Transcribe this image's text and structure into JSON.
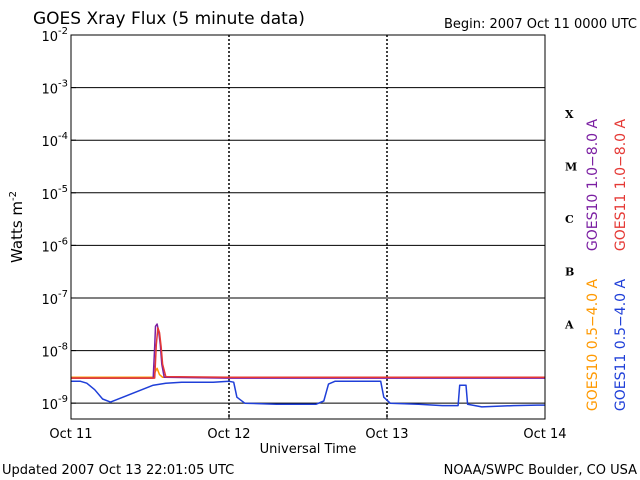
{
  "header": {
    "title": "GOES Xray Flux (5 minute data)",
    "begin": "Begin:  2007 Oct 11 0000 UTC"
  },
  "footer": {
    "updated": "Updated 2007 Oct 13 22:01:05 UTC",
    "credit": "NOAA/SWPC Boulder, CO USA"
  },
  "chart_data": {
    "type": "line",
    "title": "GOES Xray Flux (5 minute data)",
    "xlabel": "Universal Time",
    "ylabel": "Watts m-2",
    "ylabel_parts": {
      "base": "Watts m",
      "sup": "-2"
    },
    "y_scale": "log",
    "ylim": [
      5e-10,
      0.01
    ],
    "y_ticks": [
      {
        "value": 0.01,
        "base": "10",
        "exp": "-2"
      },
      {
        "value": 0.001,
        "base": "10",
        "exp": "-3"
      },
      {
        "value": 0.0001,
        "base": "10",
        "exp": "-4"
      },
      {
        "value": 1e-05,
        "base": "10",
        "exp": "-5"
      },
      {
        "value": 1e-06,
        "base": "10",
        "exp": "-6"
      },
      {
        "value": 1e-07,
        "base": "10",
        "exp": "-7"
      },
      {
        "value": 1e-08,
        "base": "10",
        "exp": "-8"
      },
      {
        "value": 1e-09,
        "base": "10",
        "exp": "-9"
      }
    ],
    "x_unit": "days since Oct 11 00:00 UTC",
    "xlim": [
      0,
      3
    ],
    "x_ticks": [
      {
        "value": 0,
        "label": "Oct 11"
      },
      {
        "value": 1,
        "label": "Oct 12"
      },
      {
        "value": 2,
        "label": "Oct 13"
      },
      {
        "value": 3,
        "label": "Oct 14"
      }
    ],
    "flare_classes": [
      {
        "label": "X",
        "low": 0.0001,
        "high": 0.001
      },
      {
        "label": "M",
        "low": 1e-05,
        "high": 0.0001
      },
      {
        "label": "C",
        "low": 1e-06,
        "high": 1e-05
      },
      {
        "label": "B",
        "low": 1e-07,
        "high": 1e-06
      },
      {
        "label": "A",
        "low": 1e-08,
        "high": 1e-07
      }
    ],
    "grid": true,
    "series": [
      {
        "name": "GOES10 1.0-8.0 A",
        "color": "#7b1fa2",
        "points": [
          [
            0,
            3e-09
          ],
          [
            0.5,
            3e-09
          ],
          [
            0.52,
            3e-09
          ],
          [
            0.53,
            1.2e-08
          ],
          [
            0.535,
            2.9e-08
          ],
          [
            0.545,
            3.2e-08
          ],
          [
            0.555,
            2.3e-08
          ],
          [
            0.565,
            1.3e-08
          ],
          [
            0.575,
            5.5e-09
          ],
          [
            0.59,
            3.1e-09
          ],
          [
            1.0,
            3e-09
          ],
          [
            2.0,
            3e-09
          ],
          [
            3.0,
            3e-09
          ]
        ]
      },
      {
        "name": "GOES11 1.0-8.0 A",
        "color": "#e53935",
        "points": [
          [
            0,
            3e-09
          ],
          [
            0.51,
            3e-09
          ],
          [
            0.53,
            3e-09
          ],
          [
            0.54,
            1.3e-08
          ],
          [
            0.55,
            2.7e-08
          ],
          [
            0.56,
            2.2e-08
          ],
          [
            0.57,
            1.2e-08
          ],
          [
            0.58,
            5.5e-09
          ],
          [
            0.6,
            3.2e-09
          ],
          [
            1.0,
            3.1e-09
          ],
          [
            2.0,
            3.1e-09
          ],
          [
            3.0,
            3.1e-09
          ]
        ]
      },
      {
        "name": "GOES10 0.5-4.0 A",
        "color": "#ff9900",
        "points": [
          [
            0,
            3.1e-09
          ],
          [
            0.52,
            3.1e-09
          ],
          [
            0.53,
            3.8e-09
          ],
          [
            0.545,
            4.6e-09
          ],
          [
            0.56,
            3.5e-09
          ],
          [
            0.58,
            3.1e-09
          ],
          [
            1.0,
            3.1e-09
          ],
          [
            2.0,
            3.1e-09
          ],
          [
            3.0,
            3.1e-09
          ]
        ]
      },
      {
        "name": "GOES11 0.5-4.0 A",
        "color": "#1f3fd8",
        "points": [
          [
            0,
            2.6e-09
          ],
          [
            0.06,
            2.6e-09
          ],
          [
            0.1,
            2.4e-09
          ],
          [
            0.15,
            1.8e-09
          ],
          [
            0.2,
            1.2e-09
          ],
          [
            0.25,
            1.05e-09
          ],
          [
            0.52,
            2.2e-09
          ],
          [
            0.6,
            2.4e-09
          ],
          [
            0.7,
            2.5e-09
          ],
          [
            0.8,
            2.5e-09
          ],
          [
            0.9,
            2.5e-09
          ],
          [
            1.0,
            2.6e-09
          ],
          [
            1.03,
            2.5e-09
          ],
          [
            1.05,
            1.3e-09
          ],
          [
            1.1,
            1e-09
          ],
          [
            1.3,
            9.5e-10
          ],
          [
            1.55,
            9.5e-10
          ],
          [
            1.6,
            1.1e-09
          ],
          [
            1.63,
            2.3e-09
          ],
          [
            1.67,
            2.6e-09
          ],
          [
            1.75,
            2.6e-09
          ],
          [
            1.9,
            2.6e-09
          ],
          [
            1.96,
            2.6e-09
          ],
          [
            1.98,
            1.3e-09
          ],
          [
            2.02,
            1e-09
          ],
          [
            2.2,
            9.5e-10
          ],
          [
            2.35,
            9e-10
          ],
          [
            2.45,
            9e-10
          ],
          [
            2.46,
            2.2e-09
          ],
          [
            2.5,
            2.2e-09
          ],
          [
            2.51,
            9.5e-10
          ],
          [
            2.6,
            8.5e-10
          ],
          [
            2.8,
            9e-10
          ],
          [
            2.95,
            9.2e-10
          ],
          [
            3.0,
            9.2e-10
          ]
        ]
      }
    ],
    "legend_order": [
      "GOES10 1.0-8.0 A",
      "GOES11 1.0-8.0 A",
      "GOES10 0.5-4.0 A",
      "GOES11 0.5-4.0 A"
    ],
    "legend_labels": [
      "GOES10 1.0−8.0 A",
      "GOES11 1.0−8.0 A",
      "GOES10 0.5−4.0 A",
      "GOES11 0.5−4.0 A"
    ],
    "legend_placement": "right, vertical"
  }
}
